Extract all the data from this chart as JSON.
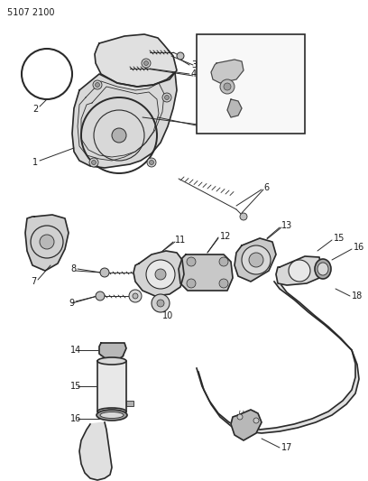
{
  "title": "5107 2100",
  "bg_color": "#ffffff",
  "lc": "#2a2a2a",
  "fig_width": 4.08,
  "fig_height": 5.33,
  "dpi": 100
}
